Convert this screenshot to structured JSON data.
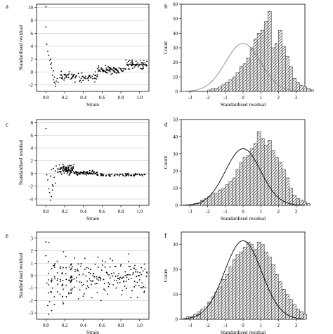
{
  "chart_data": [
    {
      "panel_label": "a",
      "type": "scatter",
      "xlabel": "Strain",
      "ylabel": "Standardised residual",
      "xlim": [
        -0.1,
        1.1
      ],
      "ylim": [
        -3,
        10.5
      ],
      "xticks": [
        "0.0",
        "0.2",
        "0.4",
        "0.6",
        "0.8",
        "1.0"
      ],
      "yticks": [
        "-2",
        "0",
        "2",
        "4",
        "6",
        "8",
        "10"
      ],
      "grid": true,
      "pattern": {
        "early": [
          [
            0.0,
            10.1
          ],
          [
            0.0,
            7.0
          ],
          [
            0.01,
            4.3
          ],
          [
            0.02,
            3.2
          ],
          [
            0.03,
            2.6
          ],
          [
            0.04,
            1.8
          ],
          [
            0.05,
            1.2
          ],
          [
            0.06,
            0.6
          ],
          [
            0.07,
            -0.5
          ],
          [
            0.08,
            -1.2
          ],
          [
            0.09,
            -1.6
          ],
          [
            0.1,
            -1.8
          ],
          [
            0.1,
            -2.2
          ],
          [
            0.08,
            0.2
          ],
          [
            0.09,
            -0.8
          ],
          [
            0.11,
            -1.4
          ],
          [
            0.12,
            -1.0
          ],
          [
            0.05,
            2.0
          ],
          [
            0.06,
            1.4
          ],
          [
            0.13,
            -1.6
          ]
        ],
        "bands": [
          [
            0.15,
            0.55,
            -1.9,
            0.3
          ],
          [
            0.55,
            0.85,
            -0.6,
            1.2
          ],
          [
            0.85,
            1.08,
            0.2,
            2.2
          ]
        ],
        "n_band_points": 230,
        "seed": 11
      }
    },
    {
      "panel_label": "b",
      "type": "bar",
      "xlabel": "Standardised residual",
      "ylabel": "Count",
      "xlim": [
        -3.5,
        3.5
      ],
      "ylim": [
        0,
        60
      ],
      "xticks": [
        "-3",
        "-2",
        "-1",
        "0",
        "1",
        "2",
        "3"
      ],
      "yticks": [
        "0",
        "10",
        "20",
        "30",
        "40",
        "50",
        "60"
      ],
      "bin_width": 0.2,
      "bin_start": -2.0,
      "values": [
        1,
        2,
        2,
        3,
        5,
        6,
        8,
        10,
        13,
        17,
        19,
        23,
        30,
        36,
        40,
        42,
        48,
        55,
        30,
        33,
        42,
        31,
        24,
        17,
        9,
        6,
        4,
        3,
        2,
        1
      ],
      "fit_curve": {
        "mean": 0,
        "sd": 1,
        "peak": 33
      }
    },
    {
      "panel_label": "c",
      "type": "scatter",
      "xlabel": "Strain",
      "ylabel": "Standardised residual",
      "xlim": [
        -0.1,
        1.1
      ],
      "ylim": [
        -5,
        8.5
      ],
      "xticks": [
        "0.0",
        "0.2",
        "0.4",
        "0.6",
        "0.8",
        "1.0"
      ],
      "yticks": [
        "-4",
        "-2",
        "0",
        "2",
        "4",
        "6",
        "8"
      ],
      "grid": true,
      "pattern": {
        "early": [
          [
            0.0,
            7.1
          ],
          [
            0.01,
            -0.2
          ],
          [
            0.02,
            -1.0
          ],
          [
            0.03,
            -2.4
          ],
          [
            0.04,
            -3.0
          ],
          [
            0.05,
            -4.2
          ],
          [
            0.06,
            -3.6
          ],
          [
            0.07,
            -2.6
          ],
          [
            0.06,
            0.6
          ],
          [
            0.07,
            -1.8
          ],
          [
            0.08,
            0.8
          ],
          [
            0.09,
            -0.6
          ],
          [
            0.08,
            -2.0
          ],
          [
            0.1,
            0.4
          ],
          [
            0.11,
            1.2
          ],
          [
            0.05,
            -0.4
          ],
          [
            0.1,
            -1.5
          ]
        ],
        "bands": [
          [
            0.12,
            0.3,
            -0.6,
            1.8
          ],
          [
            0.3,
            0.55,
            -0.4,
            0.6
          ],
          [
            0.55,
            1.08,
            -0.5,
            0.1
          ]
        ],
        "n_band_points": 230,
        "seed": 23
      }
    },
    {
      "panel_label": "d",
      "type": "bar",
      "xlabel": "Standardised residual",
      "ylabel": "Count",
      "xlim": [
        -3.5,
        3.5
      ],
      "ylim": [
        0,
        50
      ],
      "xticks": [
        "-3",
        "-2",
        "-1",
        "0",
        "1",
        "2",
        "3"
      ],
      "yticks": [
        "0",
        "10",
        "20",
        "30",
        "40",
        "50"
      ],
      "bin_width": 0.2,
      "bin_start": -2.8,
      "values": [
        1,
        1,
        3,
        4,
        5,
        7,
        7,
        9,
        10,
        12,
        14,
        16,
        21,
        25,
        28,
        29,
        33,
        36,
        43,
        39,
        35,
        38,
        32,
        28,
        25,
        21,
        16,
        10,
        6,
        4,
        3,
        2,
        1
      ],
      "fit_curve": {
        "mean": 0,
        "sd": 1,
        "peak": 33
      }
    },
    {
      "panel_label": "e",
      "type": "scatter",
      "xlabel": "Strain",
      "ylabel": "Standardised residual",
      "xlim": [
        -0.1,
        1.1
      ],
      "ylim": [
        -3.5,
        3.5
      ],
      "xticks": [
        "0.0",
        "0.2",
        "0.4",
        "0.6",
        "0.8",
        "1.0"
      ],
      "yticks": [
        "-3",
        "-2",
        "-1",
        "0",
        "1",
        "2",
        "3"
      ],
      "grid": true,
      "pattern": {
        "early": [
          [
            0.0,
            2.7
          ],
          [
            0.0,
            1.6
          ],
          [
            0.01,
            -0.6
          ],
          [
            0.02,
            -2.4
          ],
          [
            0.03,
            -3.1
          ],
          [
            0.04,
            -2.1
          ],
          [
            0.05,
            -1.3
          ],
          [
            0.06,
            -2.8
          ],
          [
            0.07,
            -1.0
          ],
          [
            0.08,
            0.8
          ],
          [
            0.09,
            -1.7
          ]
        ],
        "bands": [
          [
            0.02,
            0.3,
            -3.0,
            2.9
          ],
          [
            0.3,
            0.7,
            -2.4,
            2.0
          ],
          [
            0.7,
            1.08,
            -2.2,
            2.0
          ]
        ],
        "n_band_points": 240,
        "seed": 37
      }
    },
    {
      "panel_label": "f",
      "type": "bar",
      "xlabel": "Standardised residual",
      "ylabel": "Count",
      "xlim": [
        -3.5,
        3.5
      ],
      "ylim": [
        0,
        35
      ],
      "xticks": [
        "-3",
        "-2",
        "-1",
        "0",
        "1",
        "2",
        "3"
      ],
      "yticks": [
        "0",
        "10",
        "20",
        "30"
      ],
      "bin_width": 0.2,
      "bin_start": -3.2,
      "values": [
        1,
        1,
        2,
        3,
        4,
        5,
        7,
        9,
        11,
        13,
        16,
        18,
        21,
        24,
        26,
        27,
        29,
        31,
        30,
        28,
        31,
        30,
        27,
        25,
        22,
        18,
        15,
        12,
        10,
        8,
        6,
        4,
        3,
        2
      ],
      "fit_curve": {
        "mean": 0,
        "sd": 1.05,
        "peak": 31.5
      }
    }
  ]
}
